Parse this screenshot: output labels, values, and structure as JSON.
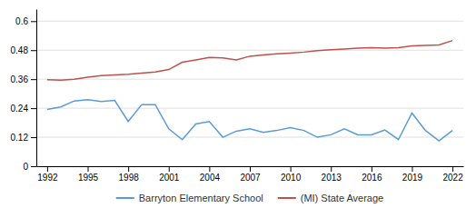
{
  "chart_data": {
    "type": "line",
    "x": [
      1992,
      1993,
      1994,
      1995,
      1996,
      1997,
      1998,
      1999,
      2000,
      2001,
      2002,
      2003,
      2004,
      2005,
      2006,
      2007,
      2008,
      2009,
      2010,
      2011,
      2012,
      2013,
      2014,
      2015,
      2016,
      2017,
      2018,
      2019,
      2020,
      2021,
      2022
    ],
    "series": [
      {
        "name": "Barryton Elementary School",
        "color": "#5b9bd5",
        "values": [
          0.235,
          0.245,
          0.27,
          0.275,
          0.268,
          0.272,
          0.185,
          0.255,
          0.255,
          0.155,
          0.11,
          0.175,
          0.185,
          0.12,
          0.145,
          0.155,
          0.14,
          0.148,
          0.16,
          0.148,
          0.12,
          0.13,
          0.155,
          0.13,
          0.13,
          0.15,
          0.11,
          0.22,
          0.148,
          0.105,
          0.148
        ]
      },
      {
        "name": "(MI) State Average",
        "color": "#c0504d",
        "values": [
          0.358,
          0.356,
          0.36,
          0.368,
          0.375,
          0.378,
          0.38,
          0.385,
          0.39,
          0.4,
          0.43,
          0.44,
          0.45,
          0.448,
          0.44,
          0.455,
          0.46,
          0.465,
          0.468,
          0.472,
          0.478,
          0.482,
          0.485,
          0.488,
          0.49,
          0.488,
          0.49,
          0.498,
          0.5,
          0.502,
          0.52
        ]
      }
    ],
    "xlim": [
      1991.2,
      2022.8
    ],
    "xticks": [
      1992,
      1995,
      1998,
      2001,
      2004,
      2007,
      2010,
      2013,
      2016,
      2019,
      2022
    ],
    "ylim": [
      0,
      0.65
    ],
    "yticks": [
      0,
      0.12,
      0.24,
      0.36,
      0.48,
      0.6
    ],
    "grid": true,
    "legend": "bottom"
  }
}
